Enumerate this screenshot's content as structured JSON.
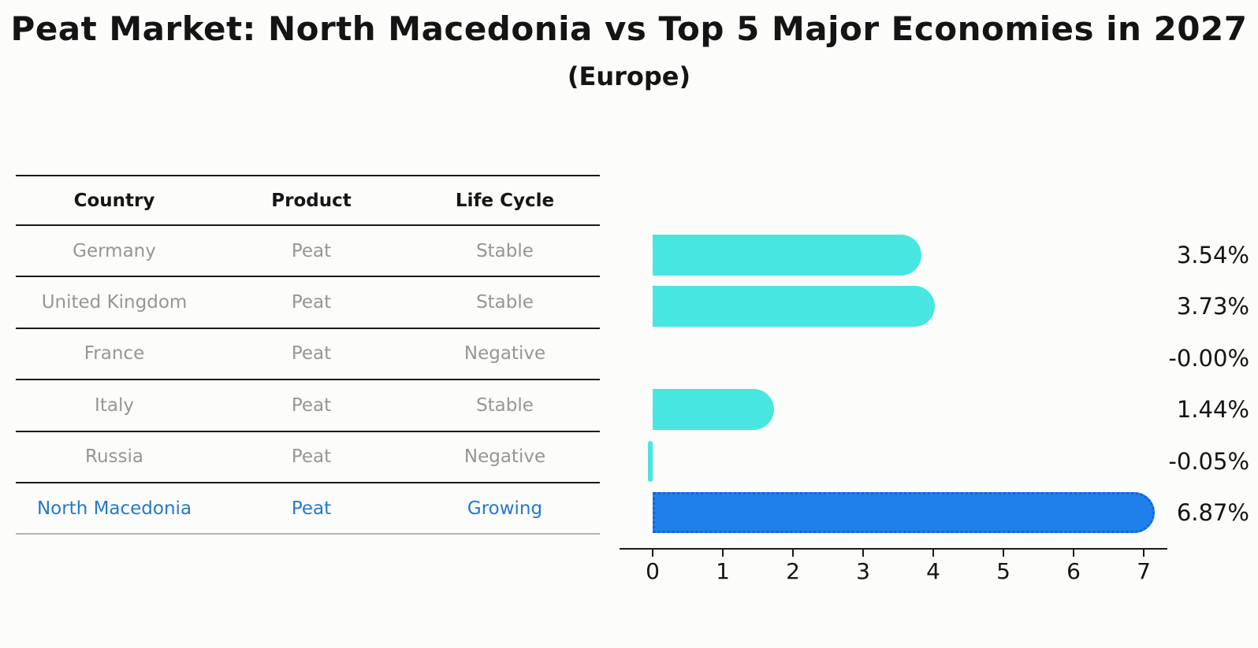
{
  "title": "Peat Market: North Macedonia vs Top 5 Major Economies in 2027",
  "subtitle": "(Europe)",
  "table": {
    "headers": [
      "Country",
      "Product",
      "Life Cycle"
    ],
    "rows": [
      {
        "country": "Germany",
        "product": "Peat",
        "life_cycle": "Stable",
        "highlight": false
      },
      {
        "country": "United Kingdom",
        "product": "Peat",
        "life_cycle": "Stable",
        "highlight": false
      },
      {
        "country": "France",
        "product": "Peat",
        "life_cycle": "Negative",
        "highlight": false
      },
      {
        "country": "Italy",
        "product": "Peat",
        "life_cycle": "Stable",
        "highlight": false
      },
      {
        "country": "Russia",
        "product": "Peat",
        "life_cycle": "Negative",
        "highlight": false
      },
      {
        "country": "North Macedonia",
        "product": "Peat",
        "life_cycle": "Growing",
        "highlight": true
      }
    ]
  },
  "chart_data": {
    "type": "bar",
    "orientation": "horizontal",
    "title": "Peat Market: North Macedonia vs Top 5 Major Economies in 2027 (Europe)",
    "categories": [
      "Germany",
      "United Kingdom",
      "France",
      "Italy",
      "Russia",
      "North Macedonia"
    ],
    "values": [
      3.54,
      3.73,
      -0.0,
      1.44,
      -0.05,
      6.87
    ],
    "value_labels": [
      "3.54%",
      "3.73%",
      "-0.00%",
      "1.44%",
      "-0.05%",
      "6.87%"
    ],
    "x_ticks": [
      0,
      1,
      2,
      3,
      4,
      5,
      6,
      7
    ],
    "xlim": [
      -0.45,
      7.33
    ],
    "grid": false,
    "legend": false,
    "highlight_index": 5
  },
  "colors": {
    "bar": "#47e6e0",
    "highlight_bar": "#1f80ec",
    "highlight_edge": "#1565d0",
    "link_text": "#2578cd"
  }
}
